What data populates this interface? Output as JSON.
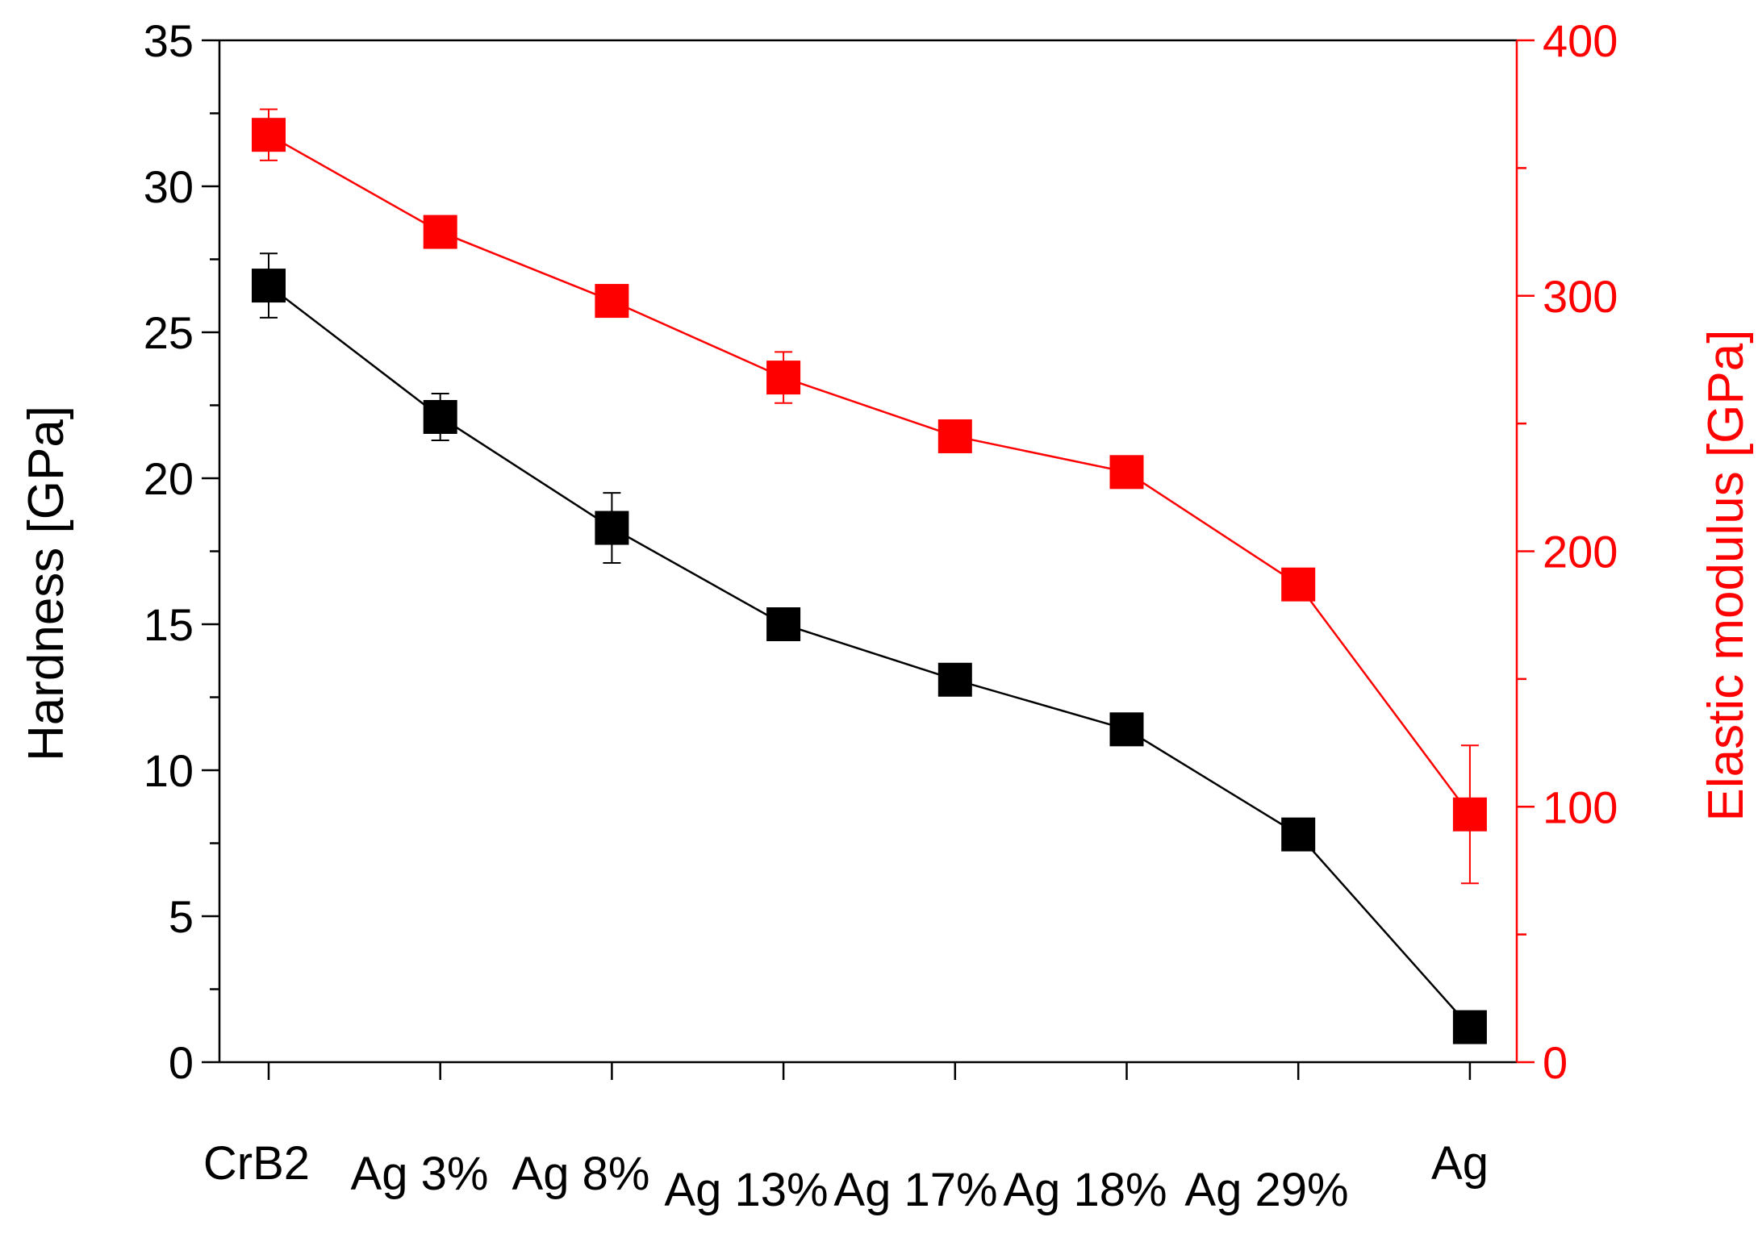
{
  "chart_data": {
    "type": "line",
    "categories": [
      "CrB2",
      "Ag 3%",
      "Ag 8%",
      "Ag 13%",
      "Ag 17%",
      "Ag 18%",
      "Ag 29%",
      "Ag"
    ],
    "ylabel": "Hardness [GPa]",
    "ylabel_right": "Elastic modulus [GPa]",
    "ylim": [
      0,
      35
    ],
    "ylim_right": [
      0,
      400
    ],
    "yticks": [
      0,
      5,
      10,
      15,
      20,
      25,
      30,
      35
    ],
    "yticks_right": [
      0,
      100,
      200,
      300,
      400
    ],
    "colors": {
      "hardness": "#000000",
      "modulus": "#ff0000"
    },
    "series": [
      {
        "axis": "left",
        "marker": "square",
        "values": [
          26.6,
          22.1,
          18.3,
          15.0,
          13.1,
          11.4,
          7.8,
          1.2
        ],
        "errors": [
          1.1,
          0.8,
          1.2,
          0.3,
          0.3,
          0.3,
          0.3,
          0.3
        ]
      },
      {
        "axis": "right",
        "marker": "square",
        "values": [
          363,
          325,
          298,
          268,
          245,
          231,
          187,
          97
        ],
        "errors": [
          10,
          3,
          4,
          10,
          3,
          3,
          3,
          27
        ]
      }
    ]
  }
}
